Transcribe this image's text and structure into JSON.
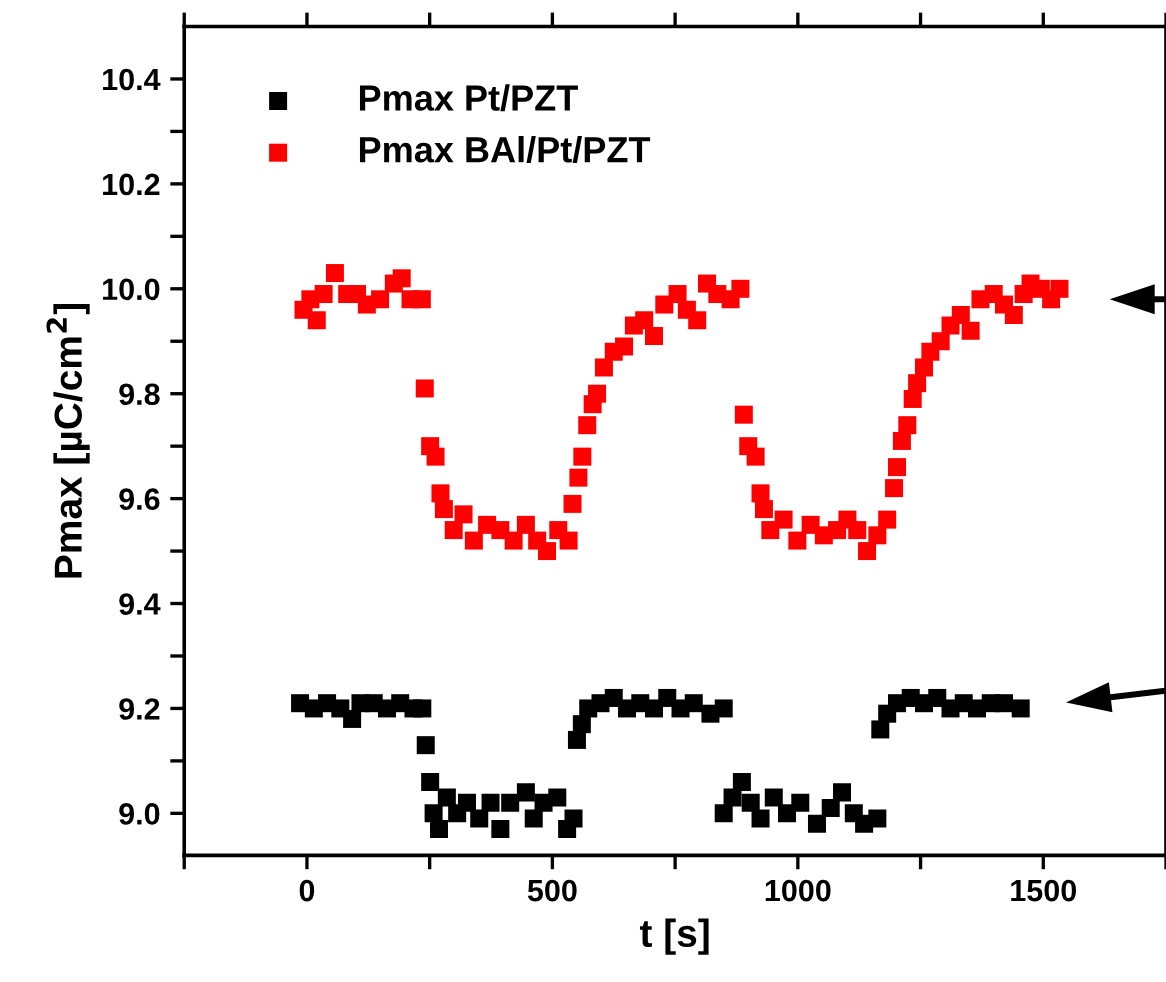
{
  "chart_data": {
    "type": "scatter",
    "xlabel": "t [s]",
    "ylabel": "Pmax [µC/cm$^{2}$]",
    "xlim": [
      -250,
      1750
    ],
    "ylim": [
      8.92,
      10.5
    ],
    "xticks": [
      {
        "value": -250,
        "label": null
      },
      0,
      {
        "value": 250,
        "label": null
      },
      500,
      {
        "value": 750,
        "label": null
      },
      1000,
      {
        "value": 1250,
        "label": null
      },
      1500,
      {
        "value": 1750,
        "label": null
      }
    ],
    "yticks": [
      {
        "value": 9.0,
        "label": "9.0"
      },
      {
        "value": 9.1,
        "label": null
      },
      9.2,
      {
        "value": 9.3,
        "label": null
      },
      9.4,
      {
        "value": 9.5,
        "label": null
      },
      9.6,
      {
        "value": 9.7,
        "label": null
      },
      9.8,
      {
        "value": 9.9,
        "label": null
      },
      {
        "value": 10.0,
        "label": "10.0"
      },
      {
        "value": 10.1,
        "label": null
      },
      10.2,
      {
        "value": 10.3,
        "label": null
      },
      10.4
    ],
    "marker": "square",
    "legend": "top left",
    "grid": false,
    "series": [
      {
        "name": "Pmax Pt/PZT",
        "color": "#000000",
        "x": [
          -14,
          14,
          41,
          68,
          92,
          109,
          136,
          163,
          190,
          217,
          235,
          242,
          251,
          258,
          269,
          285,
          306,
          326,
          351,
          374,
          394,
          414,
          446,
          462,
          482,
          510,
          530,
          543,
          550,
          560,
          573,
          598,
          625,
          652,
          679,
          707,
          734,
          761,
          788,
          822,
          849,
          849,
          867,
          886,
          904,
          924,
          951,
          978,
          1005,
          1039,
          1067,
          1090,
          1114,
          1135,
          1162,
          1168,
          1182,
          1202,
          1230,
          1257,
          1284,
          1311,
          1338,
          1365,
          1393,
          1420,
          1454
        ],
        "values": [
          9.21,
          9.2,
          9.21,
          9.2,
          9.18,
          9.21,
          9.21,
          9.2,
          9.21,
          9.2,
          9.2,
          9.13,
          9.06,
          9.0,
          8.97,
          9.03,
          9.0,
          9.02,
          8.99,
          9.02,
          8.97,
          9.02,
          9.04,
          8.99,
          9.02,
          9.03,
          8.97,
          8.99,
          9.14,
          9.17,
          9.2,
          9.21,
          9.22,
          9.2,
          9.21,
          9.2,
          9.22,
          9.2,
          9.21,
          9.19,
          9.2,
          9.0,
          9.03,
          9.06,
          9.02,
          8.99,
          9.03,
          9.0,
          9.02,
          8.98,
          9.01,
          9.04,
          9.0,
          8.98,
          8.99,
          9.16,
          9.19,
          9.21,
          9.22,
          9.21,
          9.22,
          9.2,
          9.21,
          9.2,
          9.21,
          9.21,
          9.2
        ]
      },
      {
        "name": "Pmax BAl/Pt/PZT",
        "color": "#ff0000",
        "x": [
          -7,
          7,
          20,
          34,
          57,
          82,
          102,
          122,
          149,
          177,
          193,
          211,
          234,
          240,
          251,
          262,
          272,
          279,
          299,
          319,
          340,
          367,
          394,
          421,
          446,
          469,
          489,
          512,
          533,
          541,
          553,
          561,
          571,
          582,
          591,
          605,
          625,
          646,
          666,
          687,
          707,
          728,
          755,
          774,
          795,
          815,
          836,
          863,
          883,
          890,
          899,
          914,
          924,
          931,
          944,
          971,
          999,
          1026,
          1053,
          1080,
          1101,
          1121,
          1141,
          1162,
          1182,
          1196,
          1202,
          1212,
          1223,
          1234,
          1243,
          1257,
          1270,
          1291,
          1311,
          1332,
          1352,
          1372,
          1399,
          1420,
          1440,
          1460,
          1474,
          1495,
          1516,
          1533
        ],
        "values": [
          9.96,
          9.98,
          9.94,
          9.99,
          10.03,
          9.99,
          9.99,
          9.97,
          9.98,
          10.01,
          10.02,
          9.98,
          9.98,
          9.81,
          9.7,
          9.68,
          9.61,
          9.58,
          9.54,
          9.57,
          9.52,
          9.55,
          9.54,
          9.52,
          9.55,
          9.52,
          9.5,
          9.54,
          9.52,
          9.59,
          9.64,
          9.68,
          9.74,
          9.78,
          9.8,
          9.85,
          9.88,
          9.89,
          9.93,
          9.94,
          9.91,
          9.97,
          9.99,
          9.96,
          9.94,
          10.01,
          9.99,
          9.98,
          10.0,
          9.76,
          9.7,
          9.68,
          9.61,
          9.58,
          9.54,
          9.56,
          9.52,
          9.55,
          9.53,
          9.54,
          9.56,
          9.54,
          9.5,
          9.53,
          9.56,
          9.62,
          9.66,
          9.71,
          9.74,
          9.79,
          9.82,
          9.85,
          9.88,
          9.9,
          9.93,
          9.95,
          9.92,
          9.98,
          9.99,
          9.97,
          9.95,
          9.99,
          10.01,
          10.0,
          9.98,
          10.0
        ]
      }
    ]
  }
}
